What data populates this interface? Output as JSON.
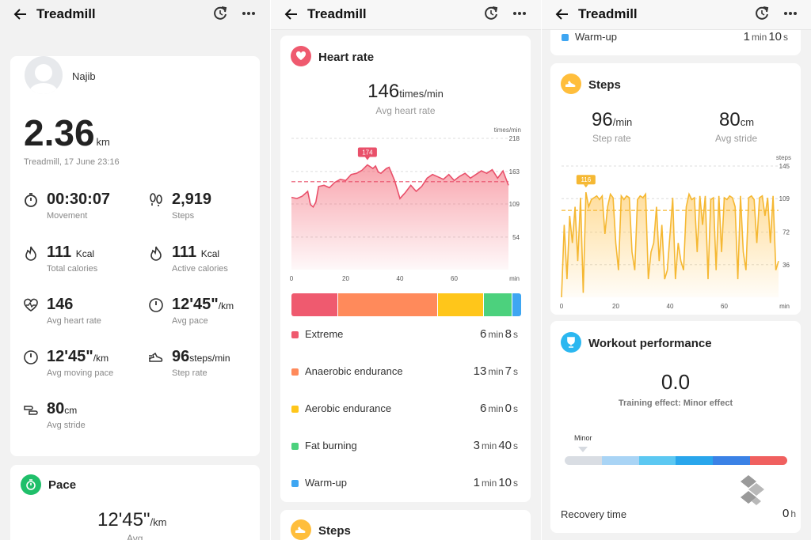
{
  "app_title": "Treadmill",
  "summary": {
    "user_name": "Najib",
    "distance": "2.36",
    "distance_unit": "km",
    "subtitle": "Treadmill, 17 June 23:16",
    "stats": [
      {
        "value": "00:30:07",
        "unit": "",
        "label": "Movement",
        "icon": "stopwatch-icon"
      },
      {
        "value": "2,919",
        "unit": "",
        "label": "Steps",
        "icon": "footprints-icon"
      },
      {
        "value": "111",
        "unit": "Kcal",
        "label": "Total calories",
        "icon": "flame-icon"
      },
      {
        "value": "111",
        "unit": "Kcal",
        "label": "Active calories",
        "icon": "flame-icon"
      },
      {
        "value": "146",
        "unit": "",
        "label": "Avg heart rate",
        "icon": "heart-pulse-icon"
      },
      {
        "value": "12'45\"",
        "unit": "/km",
        "label": "Avg pace",
        "icon": "speedometer-icon"
      },
      {
        "value": "12'45\"",
        "unit": "/km",
        "label": "Avg moving pace",
        "icon": "speedometer-icon"
      },
      {
        "value": "96",
        "unit": "steps/min",
        "label": "Step rate",
        "icon": "running-shoe-icon"
      },
      {
        "value": "80",
        "unit": "cm",
        "label": "Avg stride",
        "icon": "stride-icon"
      }
    ]
  },
  "pace": {
    "title": "Pace",
    "value": "12'45\"",
    "unit": "/km",
    "label": "Avg"
  },
  "heart_rate": {
    "title": "Heart rate",
    "avg_value": "146",
    "avg_unit": "times/min",
    "avg_label": "Avg heart rate",
    "chart_unit": "times/min",
    "x_unit": "min",
    "peak_label": "174",
    "zones": [
      {
        "name": "Extreme",
        "min": "6",
        "sec": "8",
        "color": "#ef5a6f"
      },
      {
        "name": "Anaerobic endurance",
        "min": "13",
        "sec": "7",
        "color": "#ff8a5b"
      },
      {
        "name": "Aerobic endurance",
        "min": "6",
        "sec": "0",
        "color": "#ffc61a"
      },
      {
        "name": "Fat burning",
        "min": "3",
        "sec": "40",
        "color": "#4cd17d"
      },
      {
        "name": "Warm-up",
        "min": "1",
        "sec": "10",
        "color": "#3ea6f2"
      }
    ],
    "min_label": "min",
    "sec_label": "s"
  },
  "steps": {
    "title": "Steps",
    "step_rate": "96",
    "step_rate_unit": "/min",
    "step_rate_label": "Step rate",
    "stride": "80",
    "stride_unit": "cm",
    "stride_label": "Avg stride",
    "chart_unit": "steps",
    "x_unit": "min",
    "peak_label": "116"
  },
  "workout": {
    "title": "Workout performance",
    "value": "0.0",
    "label": "Training effect: Minor effect",
    "marker_label": "Minor",
    "recovery_label": "Recovery time",
    "recovery_value": "0",
    "recovery_unit": "h",
    "scale_colors": [
      "#d9dde3",
      "#a9d4f5",
      "#5cc8f2",
      "#29a6ec",
      "#3b82e6",
      "#f0605f"
    ]
  },
  "chart_data": [
    {
      "type": "area",
      "title": "Heart rate",
      "ylabel": "times/min",
      "xlabel": "min",
      "xlim": [
        0,
        80
      ],
      "ylim": [
        0,
        218
      ],
      "yticks": [
        54,
        109,
        163,
        218
      ],
      "xticks": [
        0,
        20,
        40,
        60
      ],
      "avg_line": 146,
      "peak": 174,
      "x": [
        0,
        2,
        4,
        6,
        7,
        8,
        9,
        10,
        12,
        14,
        16,
        18,
        20,
        22,
        24,
        26,
        28,
        30,
        31,
        32,
        33,
        34,
        35,
        36,
        38,
        40,
        42,
        44,
        46,
        48,
        50,
        52,
        54,
        56,
        58,
        60,
        62,
        64,
        66,
        68,
        70,
        72,
        74,
        76,
        78,
        80
      ],
      "values": [
        120,
        118,
        122,
        130,
        108,
        104,
        112,
        138,
        140,
        136,
        145,
        150,
        148,
        158,
        160,
        165,
        174,
        168,
        172,
        162,
        160,
        164,
        168,
        170,
        148,
        118,
        128,
        140,
        130,
        138,
        152,
        158,
        154,
        150,
        158,
        148,
        155,
        160,
        152,
        158,
        164,
        160,
        166,
        152,
        164,
        140
      ]
    },
    {
      "type": "area",
      "title": "Steps",
      "ylabel": "steps",
      "xlabel": "min",
      "xlim": [
        0,
        80
      ],
      "ylim": [
        0,
        145
      ],
      "yticks": [
        36,
        72,
        109,
        145
      ],
      "xticks": [
        0,
        20,
        40,
        60
      ],
      "avg_line": 96,
      "peak": 116,
      "x": [
        0,
        1,
        2,
        3,
        4,
        5,
        6,
        7,
        8,
        9,
        10,
        11,
        12,
        13,
        14,
        15,
        16,
        17,
        18,
        19,
        20,
        21,
        22,
        23,
        24,
        25,
        26,
        27,
        28,
        29,
        30,
        31,
        32,
        33,
        34,
        35,
        36,
        37,
        38,
        39,
        40,
        41,
        42,
        43,
        44,
        45,
        46,
        47,
        48,
        49,
        50,
        51,
        52,
        53,
        54,
        55,
        56,
        57,
        58,
        59,
        60,
        61,
        62,
        63,
        64,
        65,
        66,
        67,
        68,
        69,
        70,
        71,
        72,
        73,
        74,
        75,
        76,
        77,
        78,
        79,
        80
      ],
      "values": [
        0,
        80,
        20,
        90,
        60,
        100,
        40,
        110,
        5,
        116,
        100,
        108,
        110,
        112,
        108,
        112,
        70,
        100,
        114,
        110,
        60,
        30,
        112,
        108,
        112,
        110,
        50,
        30,
        108,
        112,
        110,
        114,
        20,
        50,
        60,
        100,
        40,
        80,
        20,
        30,
        70,
        110,
        20,
        60,
        40,
        30,
        100,
        114,
        108,
        110,
        50,
        112,
        80,
        112,
        20,
        108,
        110,
        30,
        112,
        50,
        110,
        108,
        112,
        110,
        100,
        20,
        112,
        50,
        30,
        110,
        112,
        108,
        60,
        110,
        112,
        90,
        110,
        60,
        112,
        30,
        40
      ]
    }
  ]
}
